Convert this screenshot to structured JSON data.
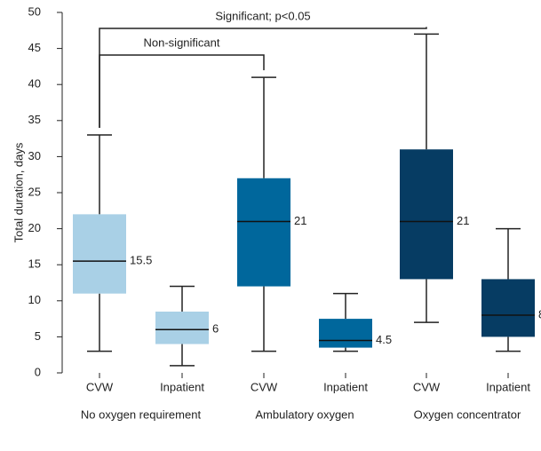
{
  "chart_data": {
    "type": "box",
    "y_label": "Total duration, days",
    "ylim": [
      0,
      50
    ],
    "yticks": [
      0,
      5,
      10,
      15,
      20,
      25,
      30,
      35,
      40,
      45,
      50
    ],
    "categories": [
      "CVW",
      "Inpatient",
      "CVW",
      "Inpatient",
      "CVW",
      "Inpatient"
    ],
    "groups": [
      "No oxygen requirement",
      "Ambulatory oxygen",
      "Oxygen concentrator"
    ],
    "boxes": [
      {
        "min": 3,
        "q1": 11,
        "median": 15.5,
        "q3": 22,
        "max": 33,
        "color": "#a9d0e6"
      },
      {
        "min": 1,
        "q1": 4,
        "median": 6,
        "q3": 8.5,
        "max": 12,
        "color": "#a9d0e6"
      },
      {
        "min": 3,
        "q1": 12,
        "median": 21,
        "q3": 27,
        "max": 41,
        "color": "#00679c"
      },
      {
        "min": 3,
        "q1": 3.5,
        "median": 4.5,
        "q3": 7.5,
        "max": 11,
        "color": "#00679c"
      },
      {
        "min": 7,
        "q1": 13,
        "median": 21,
        "q3": 31,
        "max": 47,
        "color": "#063c63"
      },
      {
        "min": 3,
        "q1": 5,
        "median": 8,
        "q3": 13,
        "max": 20,
        "color": "#063c63"
      }
    ],
    "annotations": [
      "Non-significant",
      "Significant; p<0.05"
    ]
  }
}
